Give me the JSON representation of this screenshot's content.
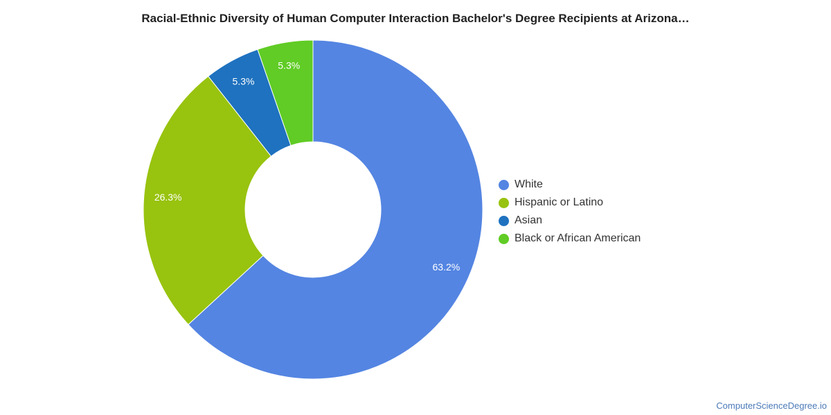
{
  "chart_data": {
    "type": "pie",
    "variant": "donut",
    "title": "Racial-Ethnic Diversity of Human Computer Interaction Bachelor's Degree Recipients at Arizona…",
    "categories": [
      "White",
      "Hispanic or Latino",
      "Asian",
      "Black or African American"
    ],
    "values": [
      63.2,
      26.3,
      5.3,
      5.3
    ],
    "value_labels": [
      "63.2%",
      "26.3%",
      "5.3%",
      "5.3%"
    ],
    "colors": [
      "#5485e2",
      "#98c30f",
      "#1f72bf",
      "#60cc25"
    ],
    "legend_position": "right"
  },
  "footer": {
    "credit": "ComputerScienceDegree.io"
  }
}
